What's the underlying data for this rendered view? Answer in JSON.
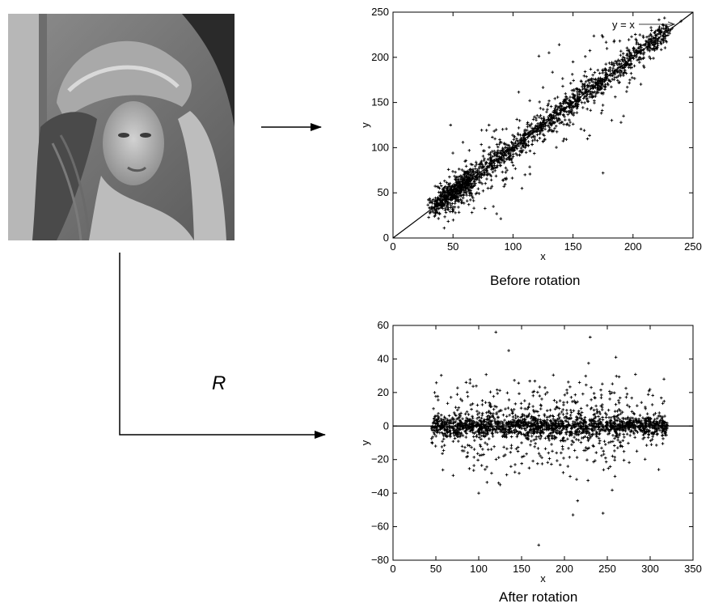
{
  "operator_label": "R",
  "chart_data": [
    {
      "type": "scatter",
      "title": "",
      "caption": "Before rotation",
      "xlabel": "x",
      "ylabel": "y",
      "xlim": [
        0,
        250
      ],
      "ylim": [
        0,
        250
      ],
      "xticks": [
        0,
        50,
        100,
        150,
        200,
        250
      ],
      "yticks": [
        0,
        50,
        100,
        150,
        200,
        250
      ],
      "annotation": "y = x",
      "reference_line": "y = x",
      "points_description": "dense cloud of about 2500 pixel-pair points concentrated along y = x from about 30 to 230",
      "sample_points": [
        [
          45,
          50
        ],
        [
          50,
          45
        ],
        [
          55,
          60
        ],
        [
          48,
          125
        ],
        [
          80,
          125
        ],
        [
          130,
          205
        ],
        [
          150,
          195
        ],
        [
          175,
          72
        ],
        [
          190,
          128
        ],
        [
          125,
          130
        ],
        [
          100,
          100
        ],
        [
          150,
          150
        ],
        [
          200,
          200
        ],
        [
          60,
          85
        ],
        [
          70,
          50
        ],
        [
          110,
          70
        ],
        [
          240,
          240
        ]
      ]
    },
    {
      "type": "scatter",
      "title": "",
      "caption": "After rotation",
      "xlabel": "x",
      "ylabel": "y",
      "xlim": [
        0,
        350
      ],
      "ylim": [
        -80,
        60
      ],
      "xticks": [
        0,
        50,
        100,
        150,
        200,
        250,
        300,
        350
      ],
      "yticks": [
        -80,
        -60,
        -40,
        -20,
        0,
        20,
        40,
        60
      ],
      "reference_line": "y = 0",
      "points_description": "dense band of about 2500 points along y = 0 from about x = 40 to 320",
      "sample_points": [
        [
          120,
          56
        ],
        [
          135,
          45
        ],
        [
          230,
          53
        ],
        [
          260,
          41
        ],
        [
          170,
          -71
        ],
        [
          210,
          -53
        ],
        [
          245,
          -52
        ],
        [
          100,
          -40
        ],
        [
          125,
          -35
        ],
        [
          180,
          20
        ],
        [
          60,
          0
        ],
        [
          300,
          2
        ],
        [
          150,
          -10
        ],
        [
          200,
          5
        ]
      ]
    }
  ]
}
